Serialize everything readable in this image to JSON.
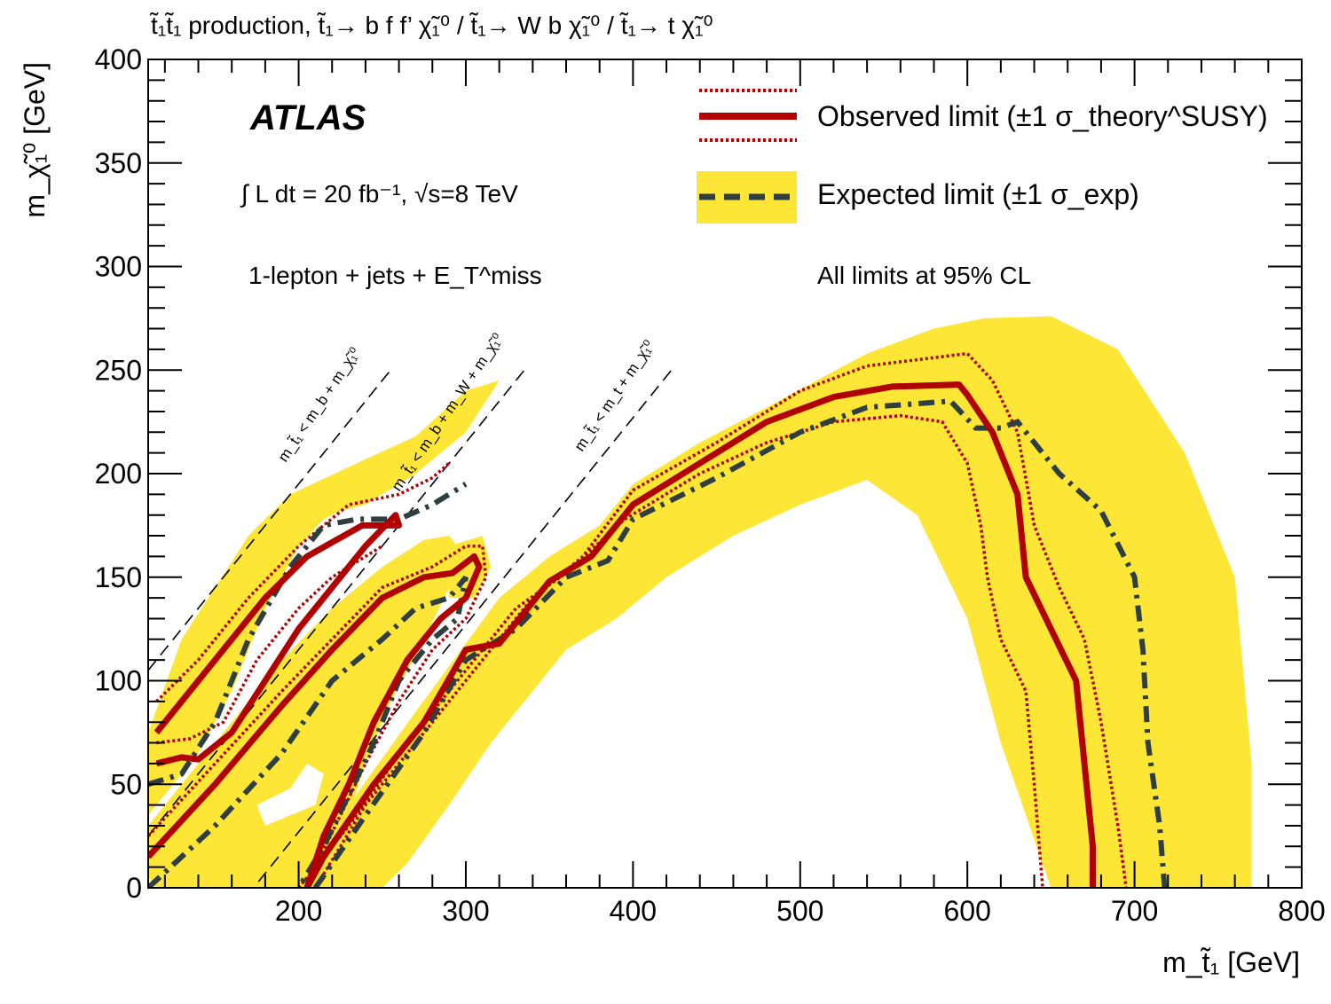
{
  "title_line": "t̃₁t̃₁ production, t̃₁→ b f f’ χ̃₁⁰ / t̃₁→ W b χ̃₁⁰ / t̃₁→ t χ̃₁⁰",
  "atlas_label": "ATLAS",
  "luminosity_text": "∫ L dt = 20 fb⁻¹, √s=8 TeV",
  "channel_text": "1-lepton + jets + E_T^miss",
  "cl_text": "All limits at 95% CL",
  "legend": {
    "observed": "Observed limit (±1 σ_theory^SUSY)",
    "expected": "Expected limit (±1 σ_exp)"
  },
  "diag_labels": [
    "m_t̃₁ < m_b + m_χ̃₁⁰",
    "m_t̃₁ < m_b + m_W + m_χ̃₁⁰",
    "m_t̃₁ < m_t + m_χ̃₁⁰"
  ],
  "colors": {
    "observed": "#b00000",
    "expected": "#2f3f3f",
    "band": "#fde636",
    "diag": "#000000"
  },
  "chart_data": {
    "type": "line",
    "title": "t̃₁t̃₁ production, t̃₁→ b f f’ χ̃₁⁰ / t̃₁→ W b χ̃₁⁰ / t̃₁→ t χ̃₁⁰",
    "xlabel": "m_t̃₁ [GeV]",
    "ylabel": "m_χ̃₁⁰ [GeV]",
    "xlim": [
      110,
      800
    ],
    "ylim": [
      0,
      400
    ],
    "xticks": [
      200,
      300,
      400,
      500,
      600,
      700,
      800
    ],
    "yticks": [
      0,
      50,
      100,
      150,
      200,
      250,
      300,
      350,
      400
    ],
    "diagonals": [
      {
        "label": "m_t̃₁ < m_b + m_χ̃₁⁰",
        "offset": 5
      },
      {
        "label": "m_t̃₁ < m_b + m_W + m_χ̃₁⁰",
        "offset": 85
      },
      {
        "label": "m_t̃₁ < m_t + m_χ̃₁⁰",
        "offset": 173
      }
    ],
    "expected_band_regions": [
      [
        [
          110,
          75
        ],
        [
          130,
          120
        ],
        [
          170,
          170
        ],
        [
          195,
          190
        ],
        [
          240,
          207
        ],
        [
          270,
          218
        ],
        [
          300,
          240
        ],
        [
          320,
          245
        ],
        [
          300,
          220
        ],
        [
          270,
          200
        ],
        [
          240,
          185
        ],
        [
          225,
          182
        ],
        [
          215,
          178
        ],
        [
          200,
          165
        ],
        [
          180,
          135
        ],
        [
          160,
          95
        ],
        [
          140,
          65
        ],
        [
          120,
          45
        ],
        [
          110,
          35
        ]
      ],
      [
        [
          110,
          30
        ],
        [
          150,
          70
        ],
        [
          190,
          110
        ],
        [
          220,
          135
        ],
        [
          250,
          155
        ],
        [
          275,
          168
        ],
        [
          290,
          170
        ],
        [
          300,
          160
        ],
        [
          290,
          145
        ],
        [
          275,
          120
        ],
        [
          255,
          90
        ],
        [
          240,
          60
        ],
        [
          230,
          35
        ],
        [
          225,
          0
        ],
        [
          115,
          0
        ],
        [
          110,
          5
        ]
      ],
      [
        [
          290,
          165
        ],
        [
          310,
          170
        ],
        [
          315,
          155
        ],
        [
          305,
          140
        ],
        [
          290,
          140
        ]
      ],
      [
        [
          200,
          0
        ],
        [
          230,
          40
        ],
        [
          270,
          85
        ],
        [
          300,
          118
        ],
        [
          320,
          140
        ],
        [
          350,
          160
        ],
        [
          380,
          175
        ],
        [
          400,
          195
        ],
        [
          440,
          215
        ],
        [
          480,
          232
        ],
        [
          510,
          245
        ],
        [
          540,
          258
        ],
        [
          580,
          270
        ],
        [
          610,
          275
        ],
        [
          650,
          276
        ],
        [
          690,
          260
        ],
        [
          730,
          210
        ],
        [
          760,
          150
        ],
        [
          770,
          60
        ],
        [
          770,
          0
        ],
        [
          650,
          0
        ],
        [
          620,
          70
        ],
        [
          600,
          130
        ],
        [
          570,
          180
        ],
        [
          540,
          197
        ],
        [
          500,
          185
        ],
        [
          460,
          170
        ],
        [
          420,
          150
        ],
        [
          390,
          130
        ],
        [
          360,
          115
        ],
        [
          340,
          95
        ],
        [
          315,
          70
        ],
        [
          290,
          40
        ],
        [
          265,
          12
        ],
        [
          250,
          0
        ]
      ]
    ],
    "band_holes": [
      [
        [
          175,
          40
        ],
        [
          195,
          48
        ],
        [
          205,
          60
        ],
        [
          215,
          55
        ],
        [
          210,
          40
        ],
        [
          195,
          35
        ],
        [
          180,
          30
        ]
      ]
    ],
    "series": [
      {
        "name": "Observed limit",
        "style": "solid",
        "segments": [
          [
            [
              115,
              60
            ],
            [
              130,
              63
            ],
            [
              140,
              62
            ],
            [
              160,
              75
            ],
            [
              180,
              100
            ],
            [
              200,
              125
            ],
            [
              220,
              145
            ],
            [
              240,
              165
            ],
            [
              258,
              180
            ],
            [
              260,
              175
            ],
            [
              238,
              175
            ],
            [
              205,
              160
            ],
            [
              180,
              140
            ],
            [
              160,
              120
            ],
            [
              140,
              100
            ],
            [
              125,
              85
            ],
            [
              115,
              75
            ]
          ],
          [
            [
              110,
              15
            ],
            [
              150,
              50
            ],
            [
              190,
              88
            ],
            [
              220,
              115
            ],
            [
              250,
              140
            ],
            [
              275,
              150
            ],
            [
              292,
              152
            ],
            [
              305,
              160
            ],
            [
              308,
              155
            ],
            [
              300,
              140
            ],
            [
              285,
              130
            ],
            [
              265,
              110
            ],
            [
              245,
              80
            ],
            [
              230,
              50
            ],
            [
              215,
              25
            ],
            [
              205,
              0
            ]
          ],
          [
            [
              205,
              0
            ],
            [
              215,
              15
            ],
            [
              245,
              50
            ],
            [
              275,
              80
            ],
            [
              300,
              115
            ],
            [
              320,
              118
            ],
            [
              350,
              148
            ],
            [
              375,
              160
            ],
            [
              400,
              185
            ],
            [
              440,
              205
            ],
            [
              480,
              225
            ],
            [
              520,
              237
            ],
            [
              555,
              242
            ],
            [
              595,
              243
            ],
            [
              600,
              238
            ],
            [
              615,
              220
            ],
            [
              630,
              190
            ],
            [
              635,
              150
            ],
            [
              650,
              125
            ],
            [
              665,
              100
            ],
            [
              670,
              60
            ],
            [
              675,
              20
            ],
            [
              675,
              0
            ]
          ]
        ]
      },
      {
        "name": "Observed limit (±1 σ theory)",
        "style": "dotted",
        "segments": [
          [
            [
              115,
              90
            ],
            [
              140,
              110
            ],
            [
              170,
              140
            ],
            [
              200,
              165
            ],
            [
              230,
              185
            ],
            [
              260,
              190
            ],
            [
              280,
              198
            ],
            [
              290,
              205
            ]
          ],
          [
            [
              115,
              70
            ],
            [
              135,
              72
            ],
            [
              155,
              80
            ],
            [
              175,
              110
            ],
            [
              200,
              135
            ],
            [
              220,
              150
            ],
            [
              240,
              160
            ],
            [
              250,
              165
            ]
          ],
          [
            [
              110,
              25
            ],
            [
              150,
              60
            ],
            [
              190,
              95
            ],
            [
              220,
              120
            ],
            [
              250,
              145
            ],
            [
              280,
              155
            ],
            [
              300,
              165
            ],
            [
              310,
              165
            ],
            [
              312,
              150
            ],
            [
              300,
              130
            ],
            [
              280,
              115
            ],
            [
              260,
              90
            ],
            [
              240,
              60
            ],
            [
              225,
              35
            ],
            [
              210,
              10
            ],
            [
              205,
              0
            ]
          ],
          [
            [
              210,
              0
            ],
            [
              240,
              40
            ],
            [
              280,
              80
            ],
            [
              310,
              110
            ],
            [
              340,
              140
            ],
            [
              370,
              160
            ],
            [
              400,
              192
            ],
            [
              450,
              215
            ],
            [
              500,
              240
            ],
            [
              540,
              252
            ],
            [
              600,
              258
            ],
            [
              615,
              245
            ],
            [
              630,
              220
            ],
            [
              640,
              175
            ],
            [
              655,
              145
            ],
            [
              670,
              120
            ],
            [
              680,
              80
            ],
            [
              690,
              30
            ],
            [
              695,
              0
            ]
          ],
          [
            [
              200,
              0
            ],
            [
              230,
              30
            ],
            [
              265,
              70
            ],
            [
              300,
              105
            ],
            [
              330,
              135
            ],
            [
              360,
              152
            ],
            [
              395,
              178
            ],
            [
              440,
              200
            ],
            [
              480,
              215
            ],
            [
              520,
              225
            ],
            [
              560,
              228
            ],
            [
              585,
              225
            ],
            [
              600,
              205
            ],
            [
              608,
              175
            ],
            [
              612,
              150
            ],
            [
              620,
              120
            ],
            [
              635,
              95
            ],
            [
              640,
              50
            ],
            [
              645,
              0
            ]
          ]
        ]
      },
      {
        "name": "Expected limit",
        "style": "dashed",
        "segments": [
          [
            [
              110,
              50
            ],
            [
              130,
              55
            ],
            [
              150,
              80
            ],
            [
              170,
              120
            ],
            [
              195,
              155
            ],
            [
              215,
              175
            ],
            [
              235,
              178
            ],
            [
              260,
              178
            ],
            [
              280,
              185
            ],
            [
              300,
              195
            ]
          ],
          [
            [
              110,
              0
            ],
            [
              150,
              30
            ],
            [
              190,
              65
            ],
            [
              220,
              100
            ],
            [
              250,
              120
            ],
            [
              270,
              135
            ],
            [
              290,
              140
            ],
            [
              300,
              150
            ],
            [
              295,
              130
            ],
            [
              280,
              120
            ],
            [
              260,
              100
            ],
            [
              245,
              70
            ],
            [
              230,
              45
            ],
            [
              215,
              20
            ],
            [
              200,
              0
            ]
          ],
          [
            [
              210,
              0
            ],
            [
              240,
              35
            ],
            [
              275,
              75
            ],
            [
              300,
              110
            ],
            [
              330,
              125
            ],
            [
              360,
              150
            ],
            [
              385,
              158
            ],
            [
              400,
              178
            ],
            [
              450,
              198
            ],
            [
              500,
              220
            ],
            [
              540,
              232
            ],
            [
              590,
              235
            ],
            [
              605,
              222
            ],
            [
              620,
              222
            ],
            [
              630,
              225
            ],
            [
              655,
              200
            ],
            [
              680,
              182
            ],
            [
              700,
              150
            ],
            [
              705,
              115
            ],
            [
              708,
              70
            ],
            [
              715,
              30
            ],
            [
              718,
              0
            ]
          ]
        ]
      }
    ]
  }
}
